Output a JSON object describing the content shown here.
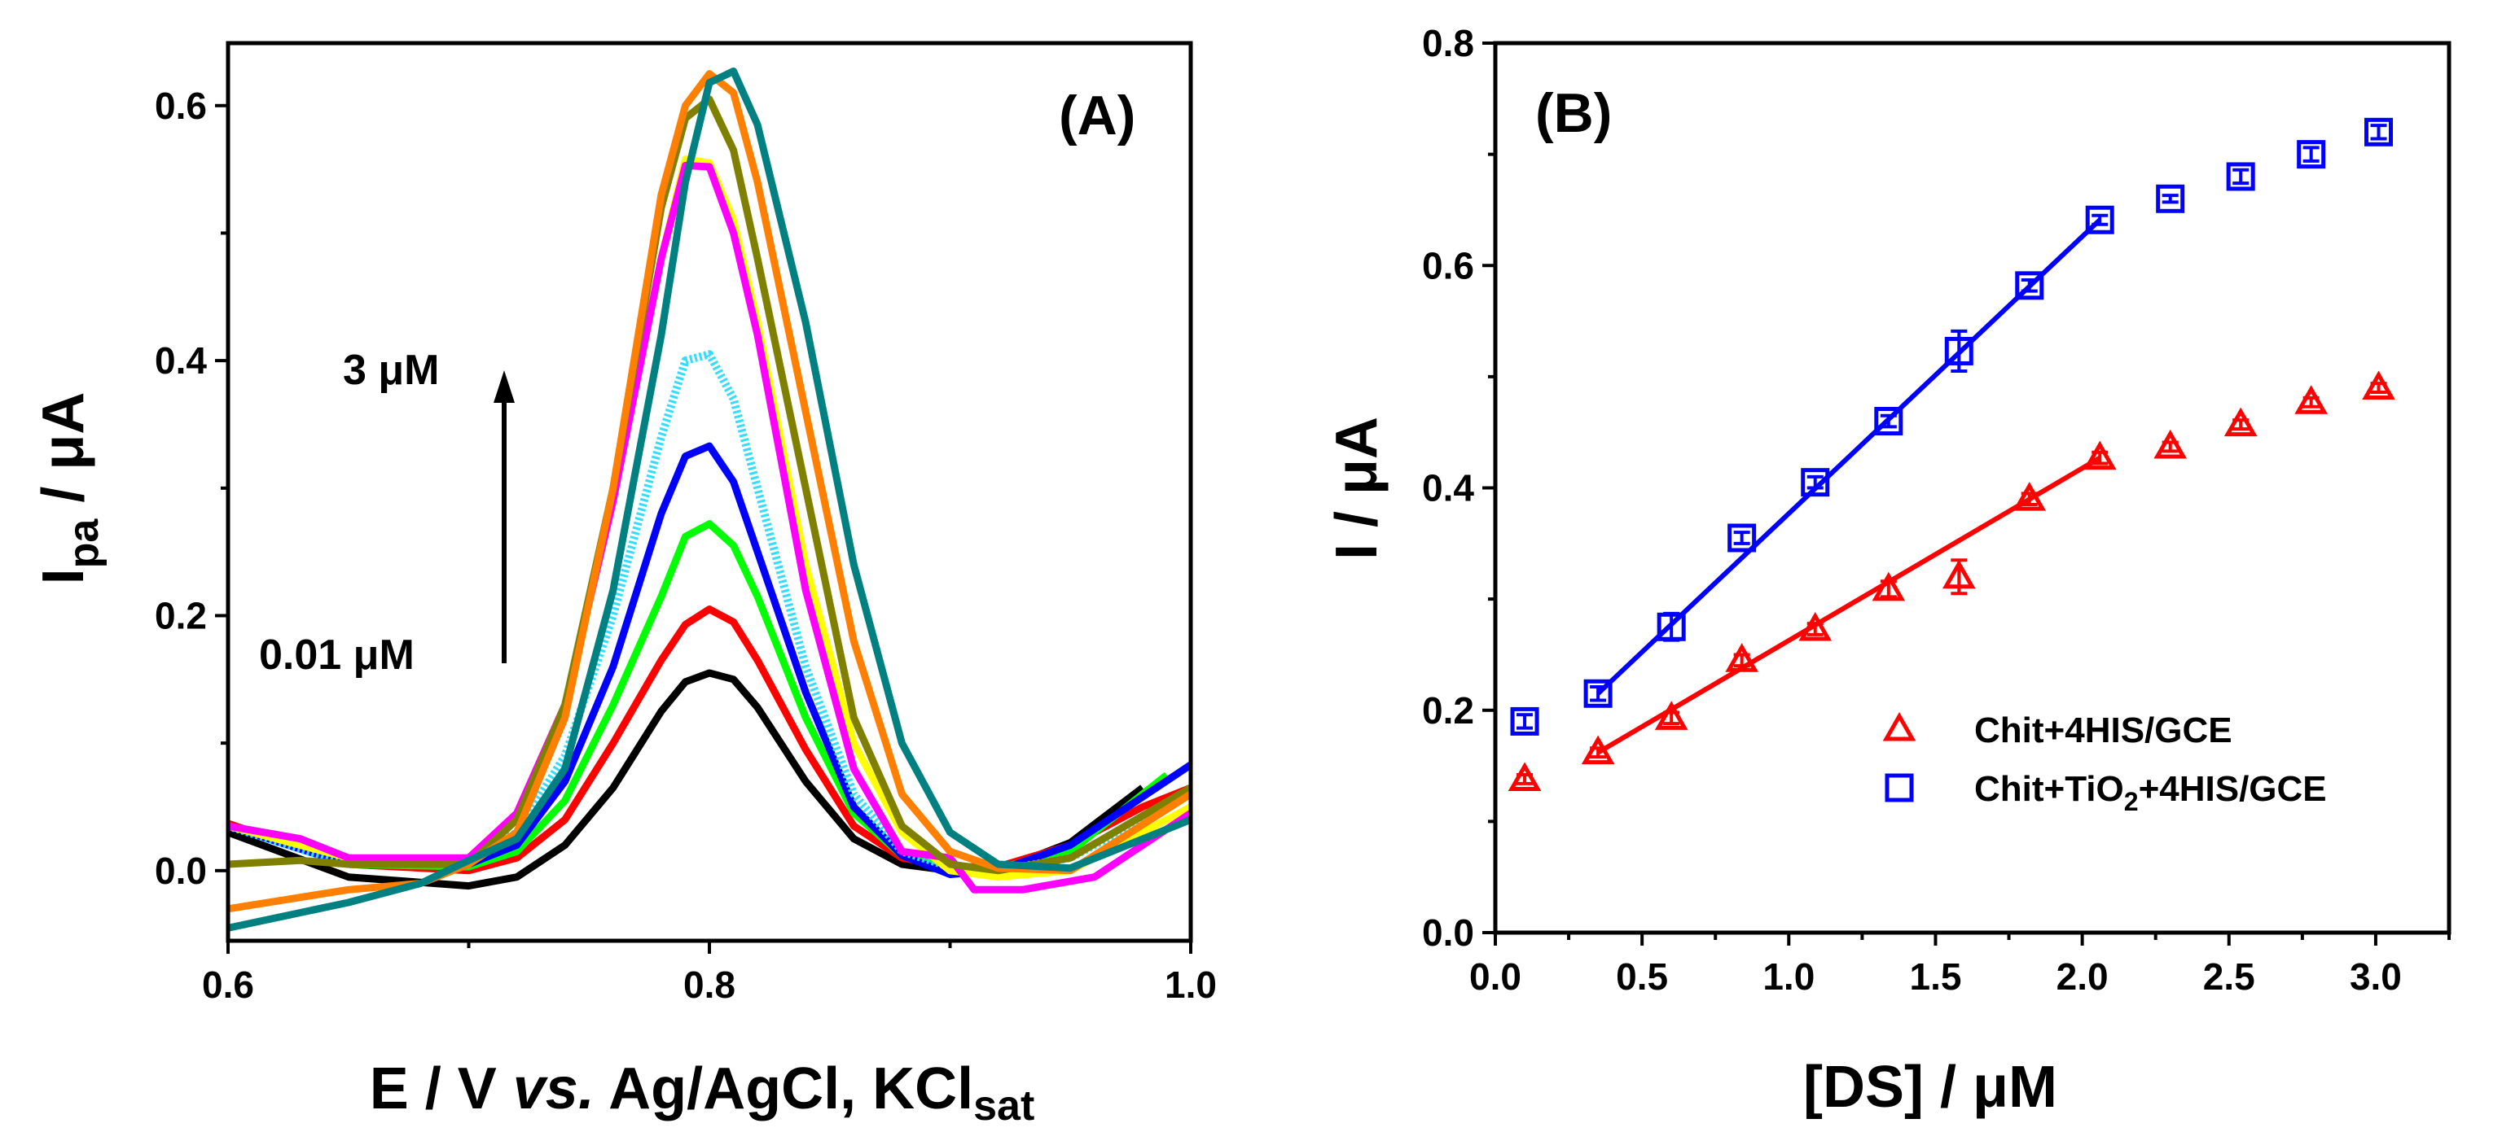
{
  "chart_data": [
    {
      "type": "line",
      "panel_label": "(A)",
      "xlabel": "E / V vs. Ag/AgCl, KCl",
      "xlabel_parts": {
        "pre": "E / V ",
        "italic": "vs.",
        "post": " Ag/AgCl, KCl",
        "sub": "sat"
      },
      "ylabel_parts": {
        "main": "I",
        "sub": "pa",
        "post": "  / μA"
      },
      "xlim": [
        0.6,
        1.0
      ],
      "ylim": [
        -0.055,
        0.649
      ],
      "xticks": [
        0.6,
        0.8,
        1.0
      ],
      "xtick_labels": [
        "0.6",
        "0.8",
        "1.0"
      ],
      "xminor": [
        0.7,
        0.9
      ],
      "yticks": [
        0.0,
        0.2,
        0.4,
        0.6
      ],
      "ytick_labels": [
        "0.0",
        "0.2",
        "0.4",
        "0.6"
      ],
      "yminor": [
        0.1,
        0.3,
        0.5
      ],
      "annotations": {
        "high": "3 μM",
        "low": "0.01 μM"
      },
      "series": [
        {
          "name": "black",
          "color": "#000000",
          "points": [
            [
              0.6,
              0.03
            ],
            [
              0.65,
              -0.005
            ],
            [
              0.7,
              -0.012
            ],
            [
              0.72,
              -0.005
            ],
            [
              0.74,
              0.02
            ],
            [
              0.76,
              0.065
            ],
            [
              0.78,
              0.125
            ],
            [
              0.79,
              0.148
            ],
            [
              0.8,
              0.155
            ],
            [
              0.81,
              0.15
            ],
            [
              0.82,
              0.128
            ],
            [
              0.84,
              0.07
            ],
            [
              0.86,
              0.025
            ],
            [
              0.88,
              0.005
            ],
            [
              0.9,
              0.0
            ],
            [
              0.92,
              0.0
            ],
            [
              0.95,
              0.022
            ],
            [
              0.98,
              0.065
            ]
          ]
        },
        {
          "name": "red",
          "color": "#ff0000",
          "points": [
            [
              0.6,
              0.037
            ],
            [
              0.65,
              0.005
            ],
            [
              0.7,
              0.0
            ],
            [
              0.72,
              0.01
            ],
            [
              0.74,
              0.04
            ],
            [
              0.76,
              0.1
            ],
            [
              0.78,
              0.165
            ],
            [
              0.79,
              0.193
            ],
            [
              0.8,
              0.205
            ],
            [
              0.81,
              0.195
            ],
            [
              0.82,
              0.165
            ],
            [
              0.84,
              0.095
            ],
            [
              0.86,
              0.035
            ],
            [
              0.88,
              0.01
            ],
            [
              0.9,
              0.003
            ],
            [
              0.92,
              0.003
            ],
            [
              0.95,
              0.02
            ],
            [
              0.98,
              0.05
            ],
            [
              1.0,
              0.065
            ]
          ]
        },
        {
          "name": "green",
          "color": "#00ff00",
          "points": [
            [
              0.6,
              0.035
            ],
            [
              0.65,
              0.005
            ],
            [
              0.7,
              0.003
            ],
            [
              0.72,
              0.015
            ],
            [
              0.74,
              0.055
            ],
            [
              0.76,
              0.13
            ],
            [
              0.78,
              0.215
            ],
            [
              0.79,
              0.262
            ],
            [
              0.8,
              0.272
            ],
            [
              0.81,
              0.255
            ],
            [
              0.82,
              0.215
            ],
            [
              0.84,
              0.12
            ],
            [
              0.86,
              0.045
            ],
            [
              0.88,
              0.012
            ],
            [
              0.9,
              0.003
            ],
            [
              0.92,
              0.002
            ],
            [
              0.95,
              0.015
            ],
            [
              0.99,
              0.075
            ]
          ]
        },
        {
          "name": "blue",
          "color": "#0000ff",
          "points": [
            [
              0.6,
              0.035
            ],
            [
              0.65,
              0.005
            ],
            [
              0.7,
              0.005
            ],
            [
              0.72,
              0.02
            ],
            [
              0.74,
              0.07
            ],
            [
              0.76,
              0.16
            ],
            [
              0.78,
              0.28
            ],
            [
              0.79,
              0.325
            ],
            [
              0.8,
              0.333
            ],
            [
              0.81,
              0.305
            ],
            [
              0.82,
              0.25
            ],
            [
              0.84,
              0.14
            ],
            [
              0.86,
              0.05
            ],
            [
              0.88,
              0.012
            ],
            [
              0.9,
              -0.003
            ],
            [
              0.92,
              0.0
            ],
            [
              0.95,
              0.02
            ],
            [
              1.0,
              0.083
            ]
          ]
        },
        {
          "name": "cyan",
          "color": "#33ddff",
          "dashed": true,
          "points": [
            [
              0.6,
              0.035
            ],
            [
              0.65,
              0.005
            ],
            [
              0.7,
              0.008
            ],
            [
              0.72,
              0.03
            ],
            [
              0.74,
              0.09
            ],
            [
              0.76,
              0.2
            ],
            [
              0.78,
              0.34
            ],
            [
              0.79,
              0.4
            ],
            [
              0.8,
              0.405
            ],
            [
              0.81,
              0.37
            ],
            [
              0.82,
              0.3
            ],
            [
              0.84,
              0.16
            ],
            [
              0.86,
              0.06
            ],
            [
              0.88,
              0.015
            ],
            [
              0.9,
              0.003
            ],
            [
              0.92,
              0.0
            ],
            [
              0.95,
              0.01
            ],
            [
              1.0,
              0.06
            ]
          ]
        },
        {
          "name": "yellow",
          "color": "#ffff00",
          "points": [
            [
              0.6,
              0.035
            ],
            [
              0.65,
              0.01
            ],
            [
              0.7,
              0.01
            ],
            [
              0.72,
              0.045
            ],
            [
              0.74,
              0.13
            ],
            [
              0.76,
              0.29
            ],
            [
              0.78,
              0.48
            ],
            [
              0.79,
              0.558
            ],
            [
              0.8,
              0.555
            ],
            [
              0.81,
              0.51
            ],
            [
              0.82,
              0.43
            ],
            [
              0.84,
              0.24
            ],
            [
              0.86,
              0.1
            ],
            [
              0.88,
              0.03
            ],
            [
              0.9,
              0.0
            ],
            [
              0.92,
              -0.005
            ],
            [
              0.95,
              0.0
            ],
            [
              1.0,
              0.05
            ]
          ]
        },
        {
          "name": "magenta",
          "color": "#ff00ff",
          "points": [
            [
              0.6,
              0.035
            ],
            [
              0.63,
              0.025
            ],
            [
              0.65,
              0.01
            ],
            [
              0.7,
              0.01
            ],
            [
              0.72,
              0.045
            ],
            [
              0.74,
              0.13
            ],
            [
              0.76,
              0.29
            ],
            [
              0.78,
              0.48
            ],
            [
              0.79,
              0.553
            ],
            [
              0.8,
              0.552
            ],
            [
              0.81,
              0.5
            ],
            [
              0.82,
              0.42
            ],
            [
              0.84,
              0.22
            ],
            [
              0.86,
              0.08
            ],
            [
              0.88,
              0.015
            ],
            [
              0.9,
              0.01
            ],
            [
              0.91,
              -0.015
            ],
            [
              0.93,
              -0.015
            ],
            [
              0.96,
              -0.005
            ],
            [
              1.0,
              0.045
            ]
          ]
        },
        {
          "name": "olive",
          "color": "#808000",
          "points": [
            [
              0.6,
              0.005
            ],
            [
              0.63,
              0.008
            ],
            [
              0.65,
              0.005
            ],
            [
              0.7,
              0.005
            ],
            [
              0.72,
              0.04
            ],
            [
              0.74,
              0.13
            ],
            [
              0.76,
              0.3
            ],
            [
              0.78,
              0.52
            ],
            [
              0.79,
              0.59
            ],
            [
              0.8,
              0.605
            ],
            [
              0.81,
              0.565
            ],
            [
              0.82,
              0.48
            ],
            [
              0.84,
              0.3
            ],
            [
              0.86,
              0.12
            ],
            [
              0.88,
              0.035
            ],
            [
              0.9,
              0.005
            ],
            [
              0.92,
              0.0
            ],
            [
              0.95,
              0.01
            ],
            [
              1.0,
              0.065
            ]
          ]
        },
        {
          "name": "orange",
          "color": "#ff8000",
          "points": [
            [
              0.6,
              -0.03
            ],
            [
              0.65,
              -0.015
            ],
            [
              0.68,
              -0.01
            ],
            [
              0.7,
              0.005
            ],
            [
              0.72,
              0.03
            ],
            [
              0.74,
              0.12
            ],
            [
              0.76,
              0.3
            ],
            [
              0.78,
              0.53
            ],
            [
              0.79,
              0.6
            ],
            [
              0.8,
              0.625
            ],
            [
              0.81,
              0.61
            ],
            [
              0.82,
              0.54
            ],
            [
              0.84,
              0.36
            ],
            [
              0.86,
              0.18
            ],
            [
              0.88,
              0.06
            ],
            [
              0.9,
              0.015
            ],
            [
              0.92,
              0.002
            ],
            [
              0.95,
              0.0
            ],
            [
              1.0,
              0.06
            ]
          ]
        },
        {
          "name": "teal",
          "color": "#008080",
          "points": [
            [
              0.6,
              -0.045
            ],
            [
              0.65,
              -0.025
            ],
            [
              0.68,
              -0.01
            ],
            [
              0.7,
              0.008
            ],
            [
              0.72,
              0.025
            ],
            [
              0.74,
              0.08
            ],
            [
              0.76,
              0.22
            ],
            [
              0.78,
              0.42
            ],
            [
              0.79,
              0.54
            ],
            [
              0.8,
              0.618
            ],
            [
              0.81,
              0.627
            ],
            [
              0.82,
              0.585
            ],
            [
              0.84,
              0.43
            ],
            [
              0.86,
              0.24
            ],
            [
              0.88,
              0.1
            ],
            [
              0.9,
              0.03
            ],
            [
              0.92,
              0.005
            ],
            [
              0.95,
              0.002
            ],
            [
              1.0,
              0.04
            ]
          ]
        }
      ]
    },
    {
      "type": "scatter",
      "panel_label": "(B)",
      "xlabel": "[DS] / μM",
      "ylabel": "I / μA",
      "xlim": [
        0.0,
        3.25
      ],
      "ylim": [
        0.0,
        0.8
      ],
      "xticks": [
        0.0,
        0.5,
        1.0,
        1.5,
        2.0,
        2.5,
        3.0
      ],
      "xtick_labels": [
        "0.0",
        "0.5",
        "1.0",
        "1.5",
        "2.0",
        "2.5",
        "3.0"
      ],
      "xminor": [
        0.25,
        0.75,
        1.25,
        1.75,
        2.25,
        2.75,
        3.25
      ],
      "yticks": [
        0.0,
        0.2,
        0.4,
        0.6,
        0.8
      ],
      "ytick_labels": [
        "0.0",
        "0.2",
        "0.4",
        "0.6",
        "0.8"
      ],
      "yminor": [
        0.1,
        0.3,
        0.5,
        0.7
      ],
      "legend_position": "lower-right",
      "x": [
        0.1,
        0.35,
        0.6,
        0.84,
        1.09,
        1.34,
        1.58,
        1.82,
        2.06,
        2.3,
        2.54,
        2.78,
        3.01
      ],
      "series": [
        {
          "name": "Chit+4HIS/GCE",
          "legend_main": "Chit+4HIS/GCE",
          "color": "#ff0000",
          "marker": "triangle",
          "values": [
            0.138,
            0.162,
            0.193,
            0.245,
            0.273,
            0.309,
            0.32,
            0.39,
            0.427,
            0.437,
            0.457,
            0.477,
            0.49
          ],
          "errors": [
            0.004,
            0.004,
            0.005,
            0.005,
            0.005,
            0.007,
            0.015,
            0.005,
            0.005,
            0.004,
            0.004,
            0.004,
            0.004
          ],
          "fit": {
            "x": [
              0.35,
              2.06
            ],
            "y": [
              0.162,
              0.427
            ]
          }
        },
        {
          "name": "Chit+TiO2+4HIS/GCE",
          "legend_pre": "Chit+TiO",
          "legend_sub": "2",
          "legend_post": "+4HIS/GCE",
          "color": "#0000ff",
          "marker": "square",
          "values": [
            0.19,
            0.215,
            0.275,
            0.355,
            0.405,
            0.46,
            0.523,
            0.582,
            0.641,
            0.66,
            0.68,
            0.7,
            0.72
          ],
          "errors": [
            0.006,
            0.006,
            0.012,
            0.005,
            0.005,
            0.005,
            0.018,
            0.005,
            0.004,
            0.003,
            0.006,
            0.006,
            0.006
          ],
          "fit": {
            "x": [
              0.35,
              2.06
            ],
            "y": [
              0.215,
              0.641
            ]
          }
        }
      ]
    }
  ]
}
